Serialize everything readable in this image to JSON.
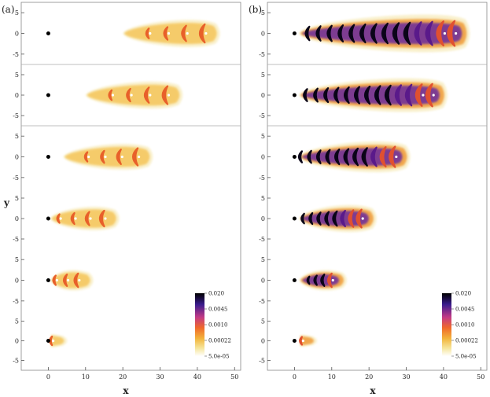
{
  "chart_data": [
    {
      "panel_label": "(a)",
      "type": "heatmap",
      "xlabel": "x",
      "ylabel": "y",
      "x_ticks": [
        0,
        10,
        20,
        30,
        40,
        50
      ],
      "y_ticks": [
        5,
        0,
        -5
      ],
      "xlim": [
        -6,
        51
      ],
      "ylim": [
        -7.5,
        7.5
      ],
      "source_point": [
        0,
        0
      ],
      "colorbar": {
        "ticks": [
          "0.020",
          "0.0045",
          "0.0010",
          "0.00022",
          "5.0e-05"
        ]
      },
      "rows": [
        {
          "front_x": 42,
          "n_rings": 4,
          "spacing": 5,
          "width": 4.0
        },
        {
          "front_x": 32,
          "n_rings": 4,
          "spacing": 5,
          "width": 4.0
        },
        {
          "front_x": 24,
          "n_rings": 4,
          "spacing": 4.5,
          "width": 3.8
        },
        {
          "front_x": 15,
          "n_rings": 4,
          "spacing": 4,
          "width": 3.5
        },
        {
          "front_x": 8,
          "n_rings": 4,
          "spacing": 3,
          "width": 3.0
        },
        {
          "front_x": 1,
          "n_rings": 1,
          "spacing": 0,
          "width": 2.0
        }
      ]
    },
    {
      "panel_label": "(b)",
      "type": "heatmap",
      "xlabel": "x",
      "ylabel": "y",
      "x_ticks": [
        0,
        10,
        20,
        30,
        40,
        50
      ],
      "y_ticks": [
        5,
        0,
        -5
      ],
      "xlim": [
        -6,
        51
      ],
      "ylim": [
        -7.5,
        7.5
      ],
      "source_point": [
        0,
        0
      ],
      "colorbar": {
        "ticks": [
          "0.020",
          "0.0045",
          "0.0010",
          "0.00022",
          "5.0e-05"
        ]
      },
      "rows": [
        {
          "front_x": 43,
          "n_rings": 14,
          "spacing": 3,
          "width": 5.5
        },
        {
          "front_x": 37,
          "n_rings": 13,
          "spacing": 2.8,
          "width": 5.0
        },
        {
          "front_x": 27,
          "n_rings": 11,
          "spacing": 2.5,
          "width": 4.5
        },
        {
          "front_x": 18,
          "n_rings": 8,
          "spacing": 2.2,
          "width": 4.0
        },
        {
          "front_x": 10,
          "n_rings": 4,
          "spacing": 2,
          "width": 3.0
        },
        {
          "front_x": 2,
          "n_rings": 1,
          "spacing": 0,
          "width": 1.8
        }
      ]
    }
  ]
}
